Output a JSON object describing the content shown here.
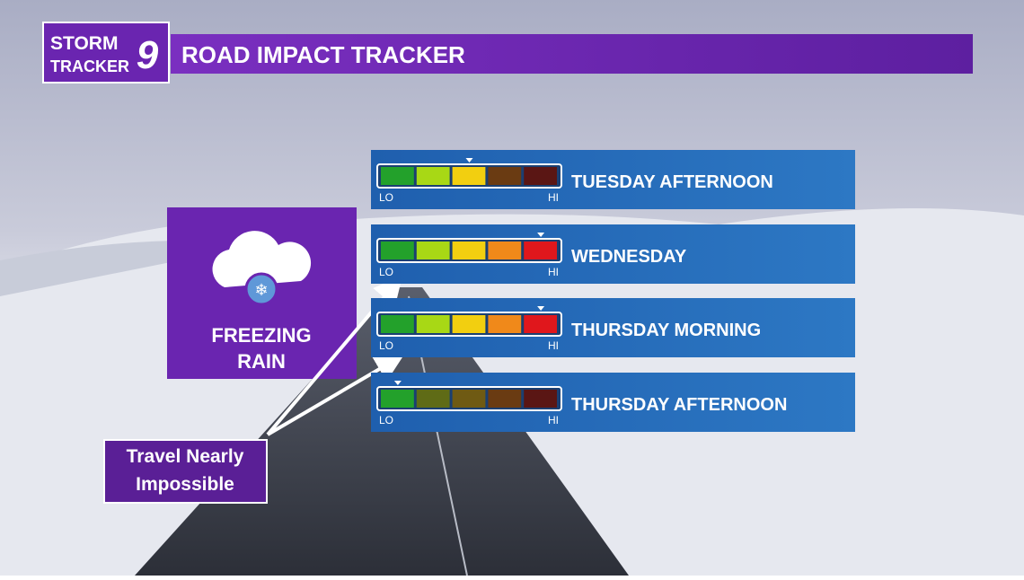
{
  "logo": {
    "line1": "STORM",
    "line2": "TRACKER",
    "number": "9"
  },
  "header": {
    "title": "ROAD IMPACT TRACKER"
  },
  "condition": {
    "label_line1": "FREEZING",
    "label_line2": "RAIN"
  },
  "callout": {
    "line1": "Travel Nearly",
    "line2": "Impossible"
  },
  "scale": {
    "lo": "LO",
    "hi": "HI",
    "segments": 5,
    "colors": [
      "#23a12b",
      "#a8d815",
      "#f2cf10",
      "#f0891a",
      "#e0171c"
    ],
    "dim_colors": [
      "#2c6b1f",
      "#5f6b16",
      "#6f5a13",
      "#6a3b12",
      "#5a1614"
    ]
  },
  "rows": [
    {
      "label": "TUESDAY AFTERNOON",
      "level": 3
    },
    {
      "label": "WEDNESDAY",
      "level": 5
    },
    {
      "label": "THURSDAY MORNING",
      "level": 5
    },
    {
      "label": "THURSDAY AFTERNOON",
      "level": 1
    }
  ]
}
